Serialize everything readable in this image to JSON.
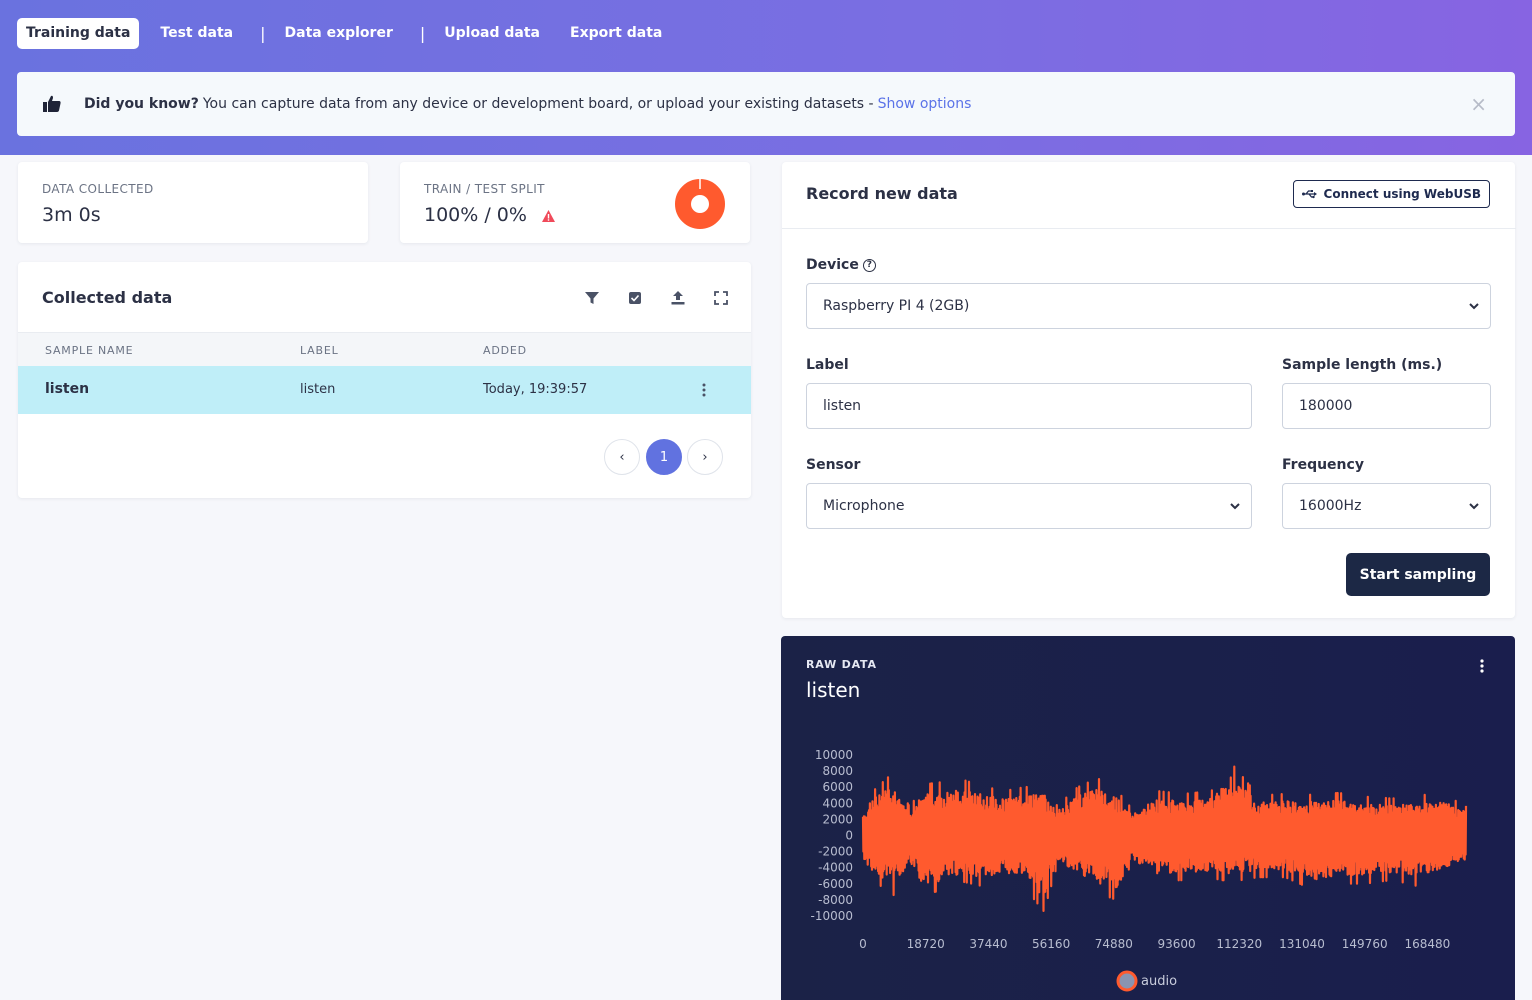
{
  "nav": {
    "tabs": [
      {
        "label": "Training data",
        "active": true
      },
      {
        "label": "Test data"
      },
      {
        "label": "Data explorer"
      },
      {
        "label": "Upload data"
      },
      {
        "label": "Export data"
      }
    ]
  },
  "banner": {
    "bold": "Did you know?",
    "text": "You can capture data from any device or development board, or upload your existing datasets -",
    "link": "Show options",
    "close": "×"
  },
  "stats": {
    "collected_label": "DATA COLLECTED",
    "collected_value": "3m 0s",
    "split_label": "TRAIN / TEST SPLIT",
    "split_value": "100% / 0%",
    "train_fraction": 1.0
  },
  "collected": {
    "title": "Collected data",
    "columns": [
      "SAMPLE NAME",
      "LABEL",
      "ADDED"
    ],
    "rows": [
      {
        "name": "listen",
        "label": "listen",
        "added": "Today, 19:39:57"
      }
    ],
    "pager": {
      "prev": "‹",
      "current": "1",
      "next": "›"
    }
  },
  "record": {
    "title": "Record new data",
    "webusb_label": "Connect using WebUSB",
    "device_label": "Device",
    "device_value": "Raspberry PI 4 (2GB)",
    "label_label": "Label",
    "label_value": "listen",
    "length_label": "Sample length (ms.)",
    "length_value": "180000",
    "sensor_label": "Sensor",
    "sensor_value": "Microphone",
    "freq_label": "Frequency",
    "freq_value": "16000Hz",
    "start_label": "Start sampling"
  },
  "raw": {
    "caption": "RAW DATA",
    "name": "listen"
  },
  "colors": {
    "accent": "#6172e0",
    "signal": "#ff5a2e",
    "dark_panel": "#1b2247",
    "row_highlight": "#bfeef8"
  },
  "chart_data": {
    "type": "line",
    "series": [
      {
        "name": "audio"
      }
    ],
    "y_ticks": [
      "10000",
      "8000",
      "6000",
      "4000",
      "2000",
      "0",
      "-2000",
      "-4000",
      "-6000",
      "-8000",
      "-10000"
    ],
    "x_ticks": [
      "0",
      "18720",
      "37440",
      "56160",
      "74880",
      "93600",
      "112320",
      "131040",
      "149760",
      "168480"
    ],
    "ylim": [
      -10000,
      10000
    ],
    "xlim": [
      0,
      180000
    ],
    "envelope": [
      {
        "x": 0,
        "hi": 3000,
        "lo": -3000
      },
      {
        "x": 3000,
        "hi": 4800,
        "lo": -4800
      },
      {
        "x": 9000,
        "hi": 6800,
        "lo": -6500
      },
      {
        "x": 14000,
        "hi": 3000,
        "lo": -3500
      },
      {
        "x": 18000,
        "hi": 5500,
        "lo": -6500
      },
      {
        "x": 24000,
        "hi": 5800,
        "lo": -5800
      },
      {
        "x": 30000,
        "hi": 6000,
        "lo": -5000
      },
      {
        "x": 36000,
        "hi": 5300,
        "lo": -5500
      },
      {
        "x": 42000,
        "hi": 4800,
        "lo": -4800
      },
      {
        "x": 48000,
        "hi": 5200,
        "lo": -5500
      },
      {
        "x": 54000,
        "hi": 5500,
        "lo": -8200
      },
      {
        "x": 58000,
        "hi": 3200,
        "lo": -3200
      },
      {
        "x": 64000,
        "hi": 5200,
        "lo": -4800
      },
      {
        "x": 70000,
        "hi": 6200,
        "lo": -6200
      },
      {
        "x": 76000,
        "hi": 4800,
        "lo": -7000
      },
      {
        "x": 80000,
        "hi": 3000,
        "lo": -3000
      },
      {
        "x": 88000,
        "hi": 4800,
        "lo": -5000
      },
      {
        "x": 96000,
        "hi": 4500,
        "lo": -4800
      },
      {
        "x": 104000,
        "hi": 4800,
        "lo": -4600
      },
      {
        "x": 110000,
        "hi": 7800,
        "lo": -5000
      },
      {
        "x": 118000,
        "hi": 4300,
        "lo": -4500
      },
      {
        "x": 126000,
        "hi": 4500,
        "lo": -4500
      },
      {
        "x": 134000,
        "hi": 4400,
        "lo": -5800
      },
      {
        "x": 142000,
        "hi": 4600,
        "lo": -5200
      },
      {
        "x": 150000,
        "hi": 4200,
        "lo": -5200
      },
      {
        "x": 158000,
        "hi": 4000,
        "lo": -4800
      },
      {
        "x": 166000,
        "hi": 4300,
        "lo": -5500
      },
      {
        "x": 172000,
        "hi": 4600,
        "lo": -4600
      },
      {
        "x": 180000,
        "hi": 3200,
        "lo": -3200
      }
    ],
    "legend": "bottom"
  }
}
